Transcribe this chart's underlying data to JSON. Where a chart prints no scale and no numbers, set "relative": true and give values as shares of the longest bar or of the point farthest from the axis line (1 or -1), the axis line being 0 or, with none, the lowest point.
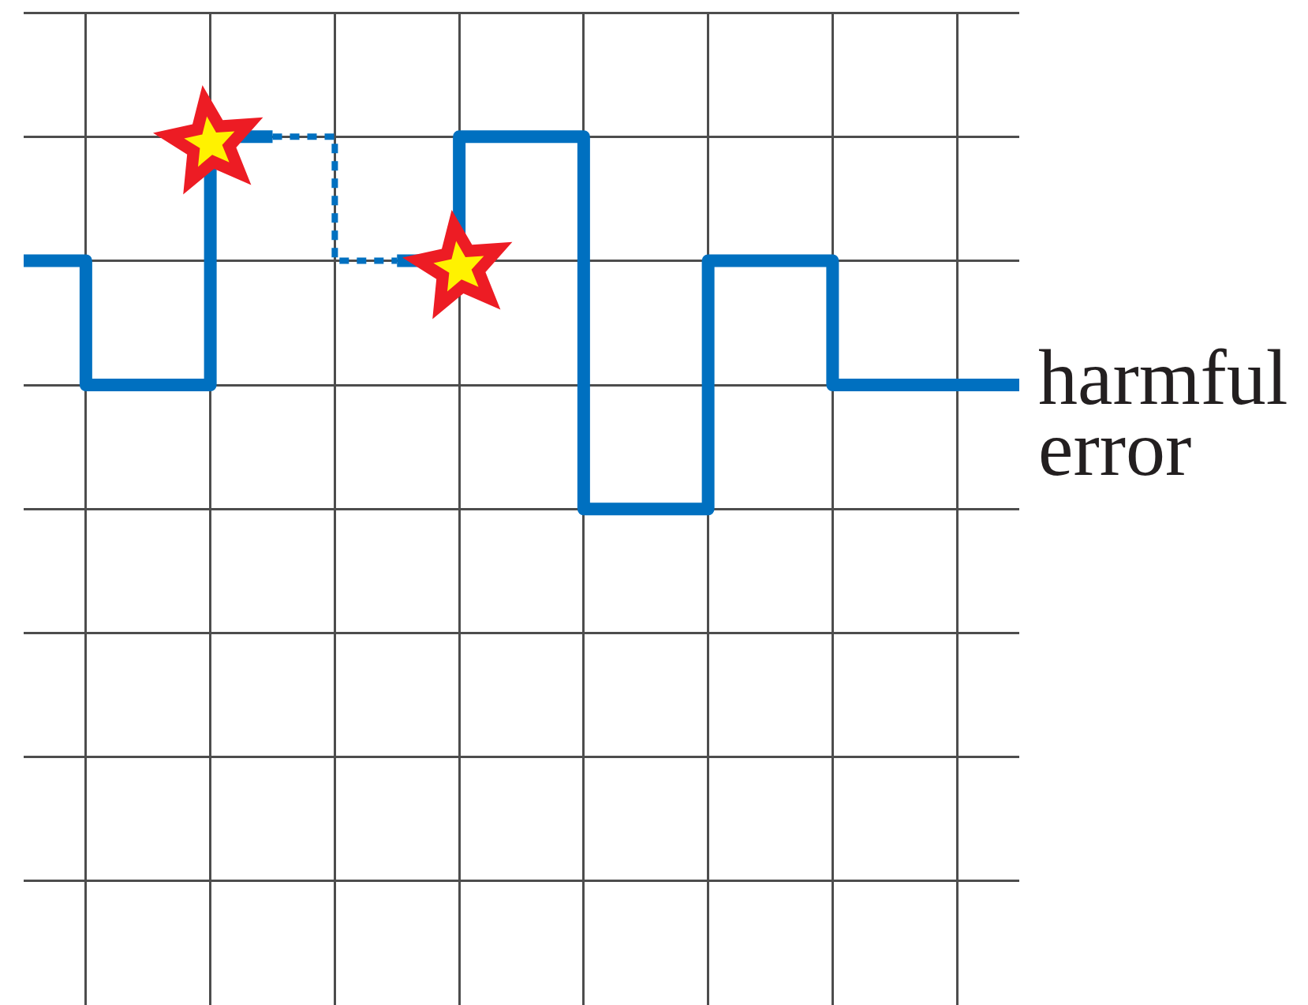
{
  "chart_data": {
    "type": "step",
    "relative": true,
    "grid": true,
    "marker": "none",
    "line_style": "solid",
    "categories": [
      null,
      null,
      null,
      null,
      null,
      null,
      null,
      null,
      null
    ],
    "series": [
      {
        "color": "#0070c0",
        "values": [
          0.667,
          0.333,
          1,
          null,
          null,
          null,
          null,
          null,
          null
        ]
      },
      {
        "color": "#0070c0",
        "line_style": "dotted",
        "values": [
          null,
          null,
          1,
          0.667,
          null,
          null,
          null,
          null,
          null
        ]
      },
      {
        "name": "harmful error",
        "color": "#0070c0",
        "values": [
          null,
          null,
          null,
          0.667,
          1,
          0,
          0.667,
          0.333,
          0.333
        ]
      }
    ]
  }
}
